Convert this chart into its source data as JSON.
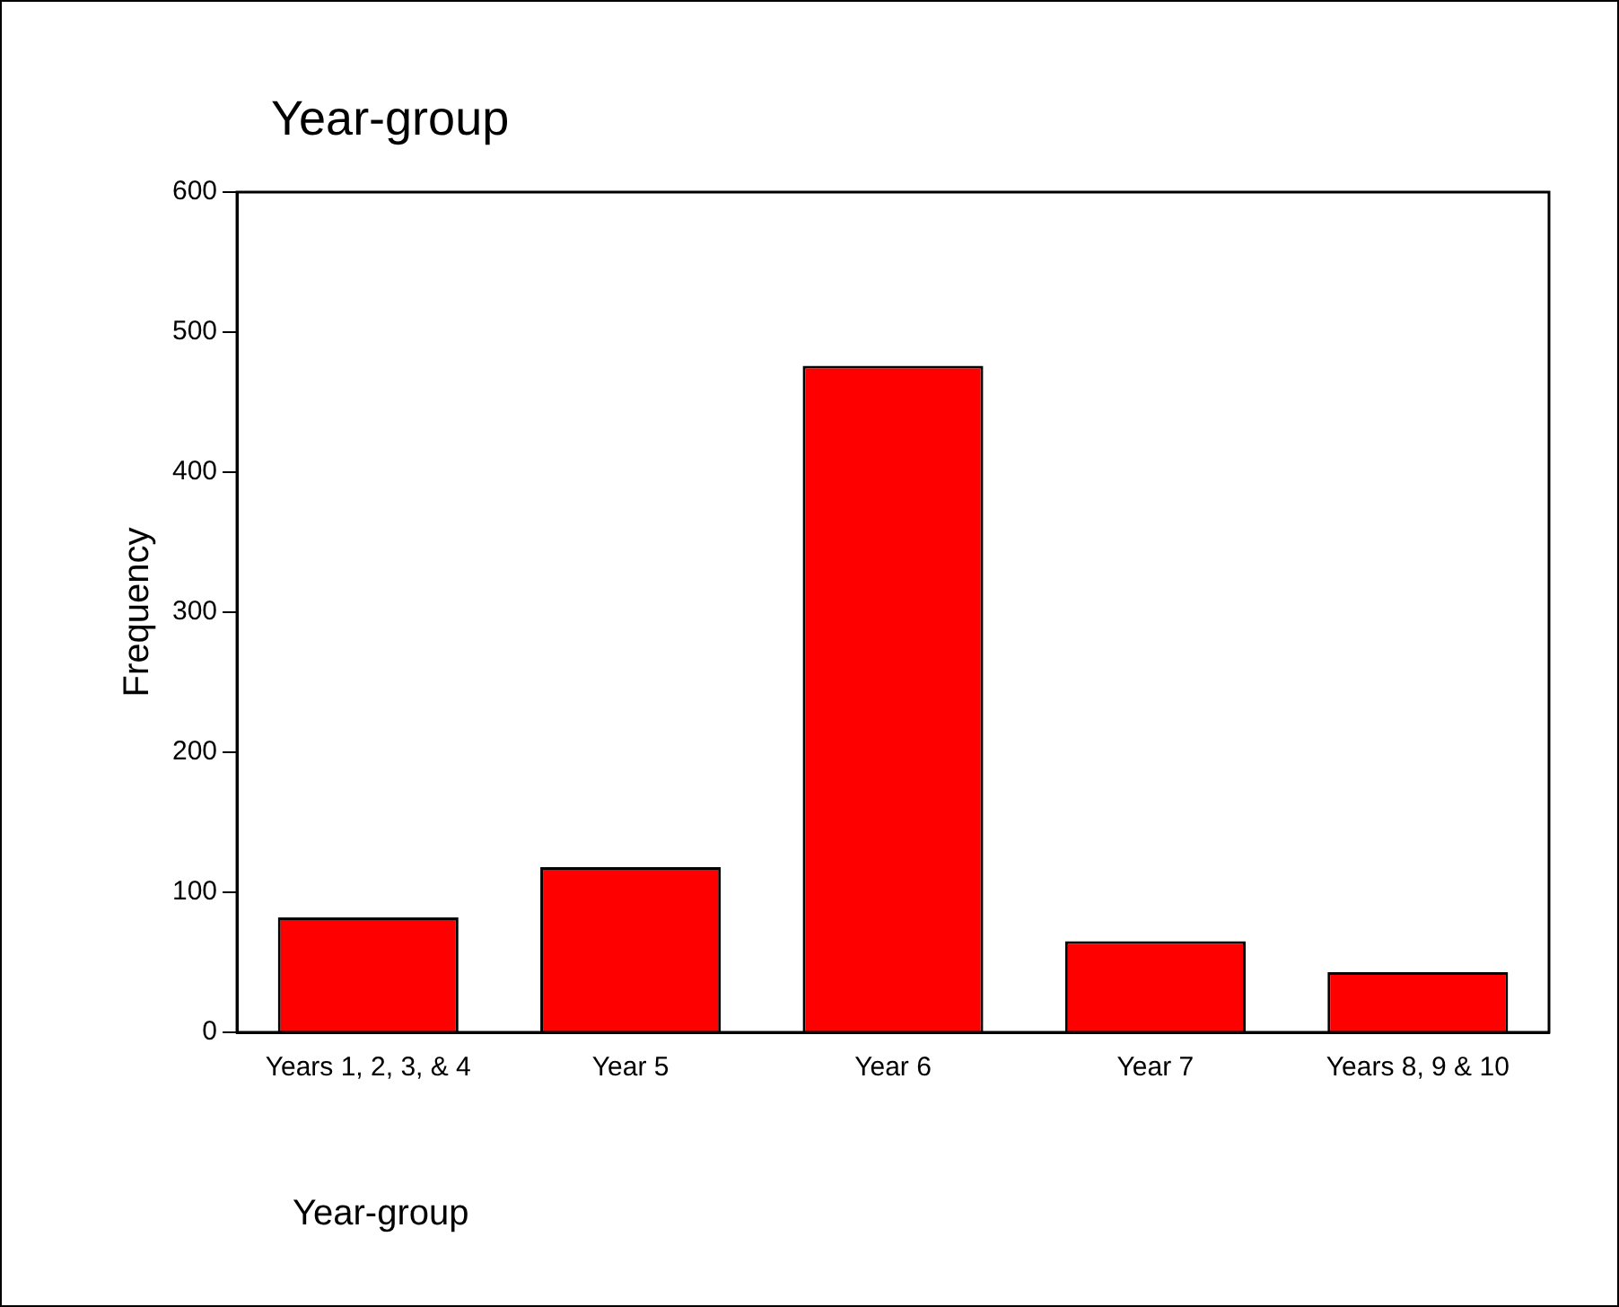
{
  "chart_data": {
    "type": "bar",
    "title": "Year-group",
    "xlabel": "Year-group",
    "ylabel": "Frequency",
    "categories": [
      "Years 1, 2, 3, & 4",
      "Year 5",
      "Year 6",
      "Year 7",
      "Years 8, 9 & 10"
    ],
    "values": [
      82,
      118,
      476,
      65,
      43
    ],
    "color": "#ff0000",
    "ylim": [
      0,
      600
    ],
    "yticks": [
      0,
      100,
      200,
      300,
      400,
      500,
      600
    ],
    "grid": false,
    "legend": false
  }
}
